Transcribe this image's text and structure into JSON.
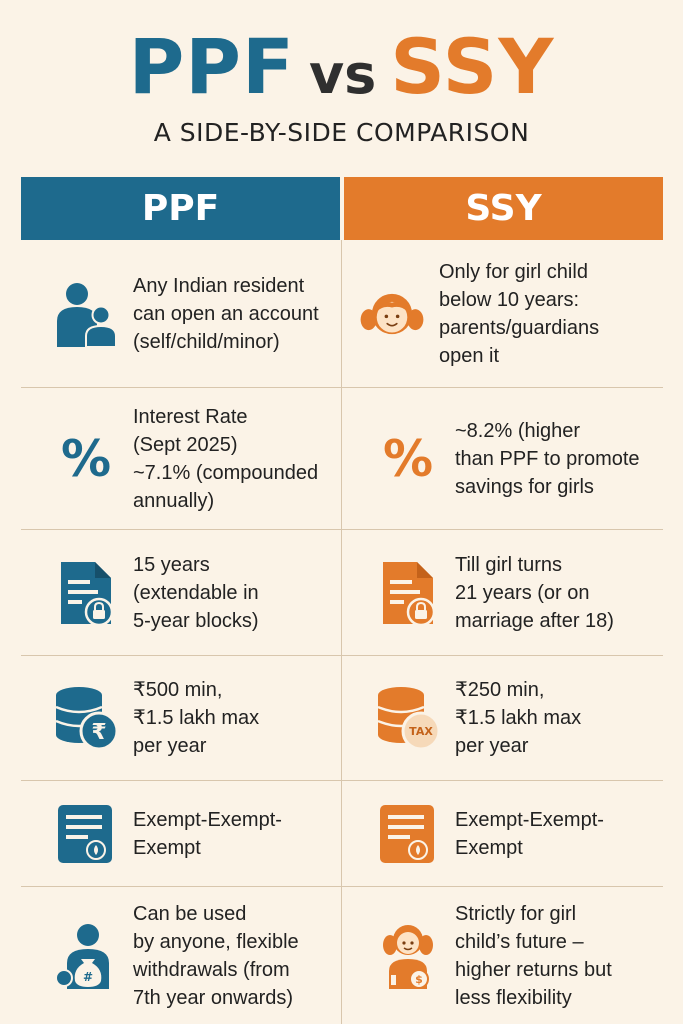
{
  "title": {
    "left": "PPF",
    "middle": "vs",
    "right": "SSY"
  },
  "subtitle": "A SIDE-BY-SIDE COMPARISON",
  "headers": {
    "ppf": "PPF",
    "ssy": "SSY"
  },
  "colors": {
    "ppf": "#1e6a8d",
    "ssy": "#e37b2b",
    "background": "#fbf3e7"
  },
  "rows": [
    {
      "ppf": {
        "icon": "people-icon",
        "lines": [
          "Any Indian resident",
          "can open an account",
          "(self/child/minor)"
        ]
      },
      "ssy": {
        "icon": "girl-face-icon",
        "lines": [
          "Only for girl child",
          "below 10 years:",
          "parents/guardians",
          "open it"
        ]
      }
    },
    {
      "ppf": {
        "icon": "percent-icon",
        "glyph": "%",
        "lines": [
          "Interest Rate",
          "(Sept 2025)",
          "~7.1% (compounded",
          "annually)"
        ]
      },
      "ssy": {
        "icon": "percent-icon",
        "glyph": "%",
        "lines": [
          "~8.2% (higher",
          "than PPF to promote",
          "savings for girls"
        ]
      }
    },
    {
      "ppf": {
        "icon": "locked-document-icon",
        "lines": [
          "15 years",
          "(extendable in",
          "5-year blocks)"
        ]
      },
      "ssy": {
        "icon": "locked-document-icon",
        "lines": [
          "Till girl turns",
          "21 years (or on",
          "marriage after 18)"
        ]
      }
    },
    {
      "ppf": {
        "icon": "rupee-coin-stack-icon",
        "badge": "₹",
        "lines": [
          "₹500 min,",
          "₹1.5 lakh max",
          "per year"
        ]
      },
      "ssy": {
        "icon": "tax-coin-stack-icon",
        "badge": "TAX",
        "lines": [
          "₹250 min,",
          "₹1.5 lakh max",
          "per year"
        ]
      }
    },
    {
      "ppf": {
        "icon": "tax-document-icon",
        "lines": [
          "Exempt-Exempt-",
          "Exempt"
        ]
      },
      "ssy": {
        "icon": "tax-document-icon",
        "lines": [
          "Exempt-Exempt-",
          "Exempt"
        ]
      }
    },
    {
      "ppf": {
        "icon": "person-moneybag-icon",
        "badge": "#",
        "lines": [
          "Can be used",
          "by anyone, flexible",
          "withdrawals (from",
          "7th year onwards)"
        ]
      },
      "ssy": {
        "icon": "girl-savings-icon",
        "badge": "$",
        "lines": [
          "Strictly for girl",
          "child’s future –",
          "higher returns but",
          "less flexibility"
        ]
      }
    }
  ]
}
